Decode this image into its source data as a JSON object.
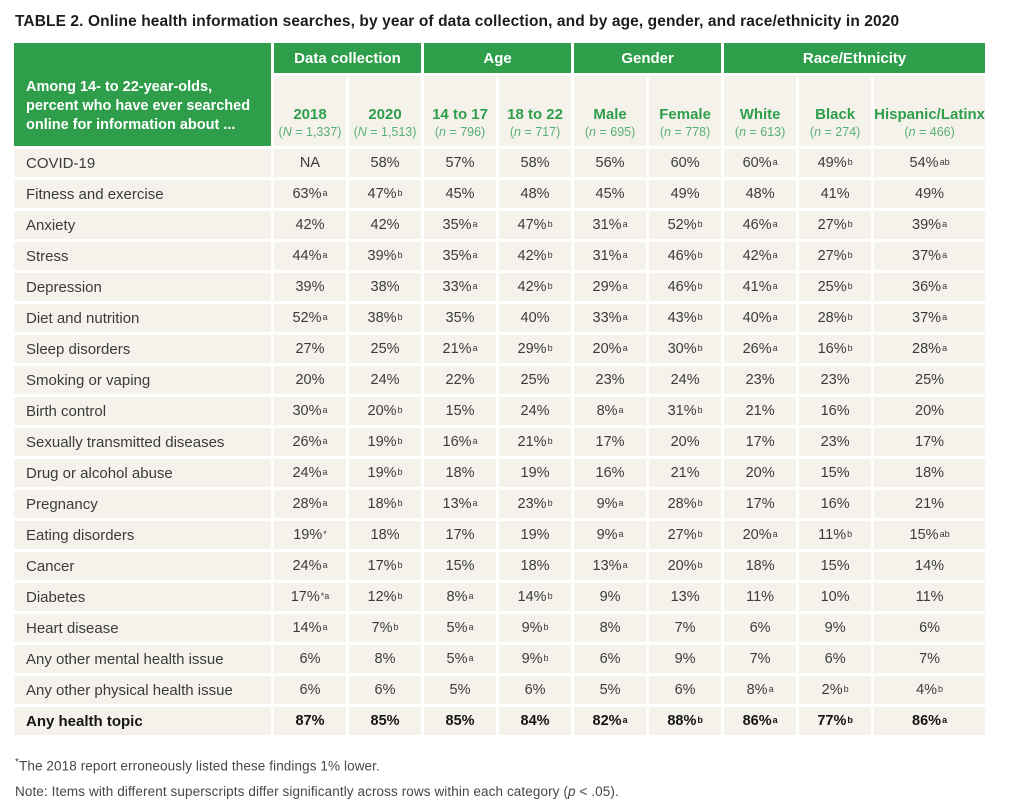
{
  "title": {
    "prefix": "TABLE 2.",
    "text": "Online health information searches, by year of data collection, and by age, gender, and race/ethnicity in 2020"
  },
  "colors": {
    "green": "#2E9E4B",
    "sample_size_green": "#58B075",
    "cell_bg": "#F5F2EC",
    "text": "#3B3B3B"
  },
  "table": {
    "corner_label": "Among 14- to 22-year-olds, percent who have ever searched online for information about ...",
    "groups": [
      {
        "label": "Data collection",
        "span": 2
      },
      {
        "label": "Age",
        "span": 2
      },
      {
        "label": "Gender",
        "span": 2
      },
      {
        "label": "Race/Ethnicity",
        "span": 3
      }
    ],
    "columns": [
      {
        "label": "2018",
        "stat": "N",
        "count": "1,337"
      },
      {
        "label": "2020",
        "stat": "N",
        "count": "1,513"
      },
      {
        "label": "14 to 17",
        "stat": "n",
        "count": "796"
      },
      {
        "label": "18 to 22",
        "stat": "n",
        "count": "717"
      },
      {
        "label": "Male",
        "stat": "n",
        "count": "695"
      },
      {
        "label": "Female",
        "stat": "n",
        "count": "778"
      },
      {
        "label": "White",
        "stat": "n",
        "count": "613"
      },
      {
        "label": "Black",
        "stat": "n",
        "count": "274"
      },
      {
        "label": "Hispanic/Latinx",
        "stat": "n",
        "count": "466"
      }
    ],
    "rows": [
      {
        "label": "COVID-19",
        "cells": [
          {
            "v": "NA"
          },
          {
            "v": "58%"
          },
          {
            "v": "57%"
          },
          {
            "v": "58%"
          },
          {
            "v": "56%"
          },
          {
            "v": "60%"
          },
          {
            "v": "60%",
            "s": "a"
          },
          {
            "v": "49%",
            "s": "b"
          },
          {
            "v": "54%",
            "s": "ab"
          }
        ]
      },
      {
        "label": "Fitness and exercise",
        "cells": [
          {
            "v": "63%",
            "s": "a"
          },
          {
            "v": "47%",
            "s": "b"
          },
          {
            "v": "45%"
          },
          {
            "v": "48%"
          },
          {
            "v": "45%"
          },
          {
            "v": "49%"
          },
          {
            "v": "48%"
          },
          {
            "v": "41%"
          },
          {
            "v": "49%"
          }
        ]
      },
      {
        "label": "Anxiety",
        "cells": [
          {
            "v": "42%"
          },
          {
            "v": "42%"
          },
          {
            "v": "35%",
            "s": "a"
          },
          {
            "v": "47%",
            "s": "b"
          },
          {
            "v": "31%",
            "s": "a"
          },
          {
            "v": "52%",
            "s": "b"
          },
          {
            "v": "46%",
            "s": "a"
          },
          {
            "v": "27%",
            "s": "b"
          },
          {
            "v": "39%",
            "s": "a"
          }
        ]
      },
      {
        "label": "Stress",
        "cells": [
          {
            "v": "44%",
            "s": "a"
          },
          {
            "v": "39%",
            "s": "b"
          },
          {
            "v": "35%",
            "s": "a"
          },
          {
            "v": "42%",
            "s": "b"
          },
          {
            "v": "31%",
            "s": "a"
          },
          {
            "v": "46%",
            "s": "b"
          },
          {
            "v": "42%",
            "s": "a"
          },
          {
            "v": "27%",
            "s": "b"
          },
          {
            "v": "37%",
            "s": "a"
          }
        ]
      },
      {
        "label": "Depression",
        "cells": [
          {
            "v": "39%"
          },
          {
            "v": "38%"
          },
          {
            "v": "33%",
            "s": "a"
          },
          {
            "v": "42%",
            "s": "b"
          },
          {
            "v": "29%",
            "s": "a"
          },
          {
            "v": "46%",
            "s": "b"
          },
          {
            "v": "41%",
            "s": "a"
          },
          {
            "v": "25%",
            "s": "b"
          },
          {
            "v": "36%",
            "s": "a"
          }
        ]
      },
      {
        "label": "Diet and nutrition",
        "cells": [
          {
            "v": "52%",
            "s": "a"
          },
          {
            "v": "38%",
            "s": "b"
          },
          {
            "v": "35%"
          },
          {
            "v": "40%"
          },
          {
            "v": "33%",
            "s": "a"
          },
          {
            "v": "43%",
            "s": "b"
          },
          {
            "v": "40%",
            "s": "a"
          },
          {
            "v": "28%",
            "s": "b"
          },
          {
            "v": "37%",
            "s": "a"
          }
        ]
      },
      {
        "label": "Sleep disorders",
        "cells": [
          {
            "v": "27%"
          },
          {
            "v": "25%"
          },
          {
            "v": "21%",
            "s": "a"
          },
          {
            "v": "29%",
            "s": "b"
          },
          {
            "v": "20%",
            "s": "a"
          },
          {
            "v": "30%",
            "s": "b"
          },
          {
            "v": "26%",
            "s": "a"
          },
          {
            "v": "16%",
            "s": "b"
          },
          {
            "v": "28%",
            "s": "a"
          }
        ]
      },
      {
        "label": "Smoking or vaping",
        "cells": [
          {
            "v": "20%"
          },
          {
            "v": "24%"
          },
          {
            "v": "22%"
          },
          {
            "v": "25%"
          },
          {
            "v": "23%"
          },
          {
            "v": "24%"
          },
          {
            "v": "23%"
          },
          {
            "v": "23%"
          },
          {
            "v": "25%"
          }
        ]
      },
      {
        "label": "Birth control",
        "cells": [
          {
            "v": "30%",
            "s": "a"
          },
          {
            "v": "20%",
            "s": "b"
          },
          {
            "v": "15%"
          },
          {
            "v": "24%"
          },
          {
            "v": "8%",
            "s": "a"
          },
          {
            "v": "31%",
            "s": "b"
          },
          {
            "v": "21%"
          },
          {
            "v": "16%"
          },
          {
            "v": "20%"
          }
        ]
      },
      {
        "label": "Sexually transmitted diseases",
        "cells": [
          {
            "v": "26%",
            "s": "a"
          },
          {
            "v": "19%",
            "s": "b"
          },
          {
            "v": "16%",
            "s": "a"
          },
          {
            "v": "21%",
            "s": "b"
          },
          {
            "v": "17%"
          },
          {
            "v": "20%"
          },
          {
            "v": "17%"
          },
          {
            "v": "23%"
          },
          {
            "v": "17%"
          }
        ]
      },
      {
        "label": "Drug or alcohol abuse",
        "cells": [
          {
            "v": "24%",
            "s": "a"
          },
          {
            "v": "19%",
            "s": "b"
          },
          {
            "v": "18%"
          },
          {
            "v": "19%"
          },
          {
            "v": "16%"
          },
          {
            "v": "21%"
          },
          {
            "v": "20%"
          },
          {
            "v": "15%"
          },
          {
            "v": "18%"
          }
        ]
      },
      {
        "label": "Pregnancy",
        "cells": [
          {
            "v": "28%",
            "s": "a"
          },
          {
            "v": "18%",
            "s": "b"
          },
          {
            "v": "13%",
            "s": "a"
          },
          {
            "v": "23%",
            "s": "b"
          },
          {
            "v": "9%",
            "s": "a"
          },
          {
            "v": "28%",
            "s": "b"
          },
          {
            "v": "17%"
          },
          {
            "v": "16%"
          },
          {
            "v": "21%"
          }
        ]
      },
      {
        "label": "Eating disorders",
        "cells": [
          {
            "v": "19%",
            "s": "*"
          },
          {
            "v": "18%"
          },
          {
            "v": "17%"
          },
          {
            "v": "19%"
          },
          {
            "v": "9%",
            "s": "a"
          },
          {
            "v": "27%",
            "s": "b"
          },
          {
            "v": "20%",
            "s": "a"
          },
          {
            "v": "11%",
            "s": "b"
          },
          {
            "v": "15%",
            "s": "ab"
          }
        ]
      },
      {
        "label": "Cancer",
        "cells": [
          {
            "v": "24%",
            "s": "a"
          },
          {
            "v": "17%",
            "s": "b"
          },
          {
            "v": "15%"
          },
          {
            "v": "18%"
          },
          {
            "v": "13%",
            "s": "a"
          },
          {
            "v": "20%",
            "s": "b"
          },
          {
            "v": "18%"
          },
          {
            "v": "15%"
          },
          {
            "v": "14%"
          }
        ]
      },
      {
        "label": "Diabetes",
        "cells": [
          {
            "v": "17%",
            "s": "*a"
          },
          {
            "v": "12%",
            "s": "b"
          },
          {
            "v": "8%",
            "s": "a"
          },
          {
            "v": "14%",
            "s": "b"
          },
          {
            "v": "9%"
          },
          {
            "v": "13%"
          },
          {
            "v": "11%"
          },
          {
            "v": "10%"
          },
          {
            "v": "11%"
          }
        ]
      },
      {
        "label": "Heart disease",
        "cells": [
          {
            "v": "14%",
            "s": "a"
          },
          {
            "v": "7%",
            "s": "b"
          },
          {
            "v": "5%",
            "s": "a"
          },
          {
            "v": "9%",
            "s": "b"
          },
          {
            "v": "8%"
          },
          {
            "v": "7%"
          },
          {
            "v": "6%"
          },
          {
            "v": "9%"
          },
          {
            "v": "6%"
          }
        ]
      },
      {
        "label": "Any other mental health issue",
        "cells": [
          {
            "v": "6%"
          },
          {
            "v": "8%"
          },
          {
            "v": "5%",
            "s": "a"
          },
          {
            "v": "9%",
            "s": "b"
          },
          {
            "v": "6%"
          },
          {
            "v": "9%"
          },
          {
            "v": "7%"
          },
          {
            "v": "6%"
          },
          {
            "v": "7%"
          }
        ]
      },
      {
        "label": "Any other physical health issue",
        "cells": [
          {
            "v": "6%"
          },
          {
            "v": "6%"
          },
          {
            "v": "5%"
          },
          {
            "v": "6%"
          },
          {
            "v": "5%"
          },
          {
            "v": "6%"
          },
          {
            "v": "8%",
            "s": "a"
          },
          {
            "v": "2%",
            "s": "b"
          },
          {
            "v": "4%",
            "s": "b"
          }
        ]
      }
    ],
    "total_row": {
      "label": "Any health topic",
      "cells": [
        {
          "v": "87%"
        },
        {
          "v": "85%"
        },
        {
          "v": "85%"
        },
        {
          "v": "84%"
        },
        {
          "v": "82%",
          "s": "a"
        },
        {
          "v": "88%",
          "s": "b"
        },
        {
          "v": "86%",
          "s": "a"
        },
        {
          "v": "77%",
          "s": "b"
        },
        {
          "v": "86%",
          "s": "a"
        }
      ]
    }
  },
  "footnotes": {
    "asterisk": {
      "sup": "*",
      "text": "The 2018 report erroneously listed these findings 1% lower."
    },
    "note": {
      "text_before": "Note: Items with different superscripts differ significantly across rows within each category (",
      "italic": "p",
      "text_after": " < .05)."
    }
  }
}
